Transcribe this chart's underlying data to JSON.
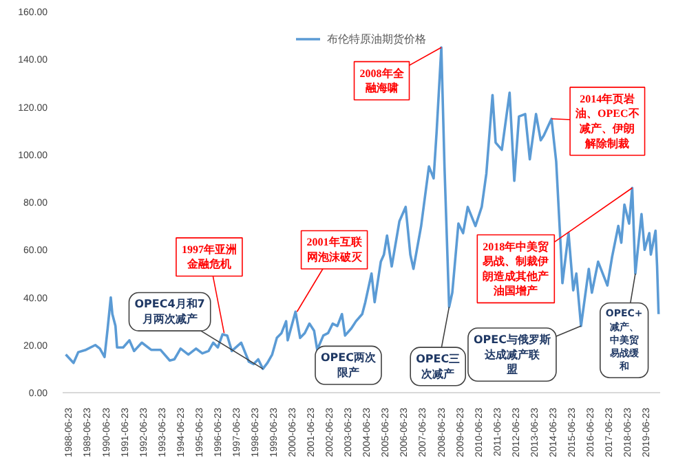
{
  "chart_data": {
    "type": "line",
    "x": [
      "1988-05",
      "1988-10",
      "1989-01",
      "1989-06",
      "1989-12",
      "1990-03",
      "1990-06",
      "1990-08",
      "1990-10",
      "1990-11",
      "1991-01",
      "1991-02",
      "1991-06",
      "1991-10",
      "1992-01",
      "1992-06",
      "1992-12",
      "1993-06",
      "1993-12",
      "1994-03",
      "1994-07",
      "1994-12",
      "1995-05",
      "1995-09",
      "1996-01",
      "1996-04",
      "1996-07",
      "1996-10",
      "1997-01",
      "1997-04",
      "1997-10",
      "1998-03",
      "1998-06",
      "1998-09",
      "1998-12",
      "1999-03",
      "1999-06",
      "1999-09",
      "1999-12",
      "2000-03",
      "2000-04",
      "2000-09",
      "2000-12",
      "2001-03",
      "2001-06",
      "2001-09",
      "2001-11",
      "2002-03",
      "2002-06",
      "2002-09",
      "2002-12",
      "2003-03",
      "2003-05",
      "2003-09",
      "2003-12",
      "2004-04",
      "2004-06",
      "2004-10",
      "2004-12",
      "2005-04",
      "2005-06",
      "2005-08",
      "2005-11",
      "2006-04",
      "2006-08",
      "2006-11",
      "2007-01",
      "2007-06",
      "2007-11",
      "2008-02",
      "2008-04",
      "2008-07",
      "2008-09",
      "2008-12",
      "2009-02",
      "2009-06",
      "2009-09",
      "2009-12",
      "2010-05",
      "2010-09",
      "2010-12",
      "2011-04",
      "2011-06",
      "2011-10",
      "2012-03",
      "2012-06",
      "2012-09",
      "2013-01",
      "2013-04",
      "2013-08",
      "2013-11",
      "2014-01",
      "2014-06",
      "2014-09",
      "2014-12",
      "2015-01",
      "2015-05",
      "2015-08",
      "2015-10",
      "2016-01",
      "2016-06",
      "2016-08",
      "2016-12",
      "2017-06",
      "2017-09",
      "2018-01",
      "2018-03",
      "2018-05",
      "2018-08",
      "2018-10",
      "2018-12",
      "2019-04",
      "2019-06",
      "2019-09",
      "2019-10",
      "2020-01",
      "2020-02",
      "2020-03"
    ],
    "series": [
      {
        "name": "布伦特原油期货价格",
        "color": "#5b9bd5",
        "values": [
          16,
          12.5,
          17,
          18,
          20,
          18.5,
          15,
          27,
          40,
          33,
          28,
          19,
          19,
          22,
          17.5,
          21,
          18,
          18,
          13.5,
          14,
          18.5,
          16,
          18.5,
          16.5,
          17.5,
          21,
          19,
          24.5,
          24,
          17.5,
          21,
          13,
          12,
          14,
          10,
          12.5,
          16,
          23,
          25,
          30,
          22,
          34,
          23,
          25,
          29,
          26,
          18,
          24,
          25,
          29,
          28,
          33,
          24,
          27,
          30,
          33,
          38,
          50,
          38,
          55,
          58,
          66,
          53,
          72,
          78,
          58,
          52,
          70,
          95,
          90,
          110,
          145,
          95,
          36,
          42,
          71,
          67,
          78,
          70,
          78,
          92,
          125,
          105,
          102,
          126,
          89,
          116,
          117,
          98,
          117,
          106,
          108,
          115,
          97,
          60,
          46,
          67,
          43,
          50,
          28,
          52,
          42,
          55,
          45,
          57,
          70,
          63,
          79,
          71,
          86,
          50,
          75,
          60,
          67,
          58,
          68,
          53,
          33
        ]
      }
    ],
    "xlim": [
      "1988-03",
      "2020-04"
    ],
    "xticks": [
      "1988-06-23",
      "1989-06-23",
      "1990-06-23",
      "1991-06-23",
      "1992-06-23",
      "1993-06-23",
      "1994-06-23",
      "1995-06-23",
      "1996-06-23",
      "1997-06-23",
      "1998-06-23",
      "1999-06-23",
      "2000-06-23",
      "2001-06-23",
      "2002-06-23",
      "2003-06-23",
      "2004-06-23",
      "2005-06-23",
      "2006-06-23",
      "2007-06-23",
      "2008-06-23",
      "2009-06-23",
      "2010-06-23",
      "2011-06-23",
      "2012-06-23",
      "2013-06-23",
      "2014-06-23",
      "2015-06-23",
      "2016-06-23",
      "2017-06-23",
      "2018-06-23",
      "2019-06-23"
    ],
    "ylim": [
      0,
      160
    ],
    "yticks": [
      {
        "value": 0,
        "label": "0.00"
      },
      {
        "value": 20,
        "label": "20.00"
      },
      {
        "value": 40,
        "label": "40.00"
      },
      {
        "value": 60,
        "label": "60.00"
      },
      {
        "value": 80,
        "label": "80.00"
      },
      {
        "value": 100,
        "label": "100.00"
      },
      {
        "value": 120,
        "label": "120.00"
      },
      {
        "value": 140,
        "label": "140.00"
      },
      {
        "value": 160,
        "label": "160.00"
      }
    ],
    "grid": false,
    "legend": "top",
    "marker": "none",
    "line_style": "solid",
    "annotations": [
      {
        "text": "1997年亚洲金融危机",
        "x": "1996-11",
        "y": 25
      },
      {
        "text": "2001年互联网泡沫破灭",
        "x": "2000-10",
        "y": 34
      },
      {
        "text": "2008年全融海啸",
        "x": "2008-07",
        "y": 145
      },
      {
        "text": "2014年页岩油、OPEC不减产、伊朗解除制裁",
        "x": "2014-06",
        "y": 115
      },
      {
        "text": "2018年中美贸易战、制裁伊朗造成其他产油国增产",
        "x": "2018-10",
        "y": 86
      },
      {
        "text": "OPEC4月和7月两次减产",
        "x": "1998-12",
        "y": 10
      },
      {
        "text": "OPEC两次限产",
        "x": "2001-11",
        "y": 18
      },
      {
        "text": "OPEC三次减产",
        "x": "2008-12",
        "y": 36
      },
      {
        "text": "OPEC与俄罗斯达成减产联盟",
        "x": "2016-01",
        "y": 28
      },
      {
        "text": "OPEC+减产、中美贸易战缓和",
        "x": "2018-12",
        "y": 50
      }
    ]
  }
}
